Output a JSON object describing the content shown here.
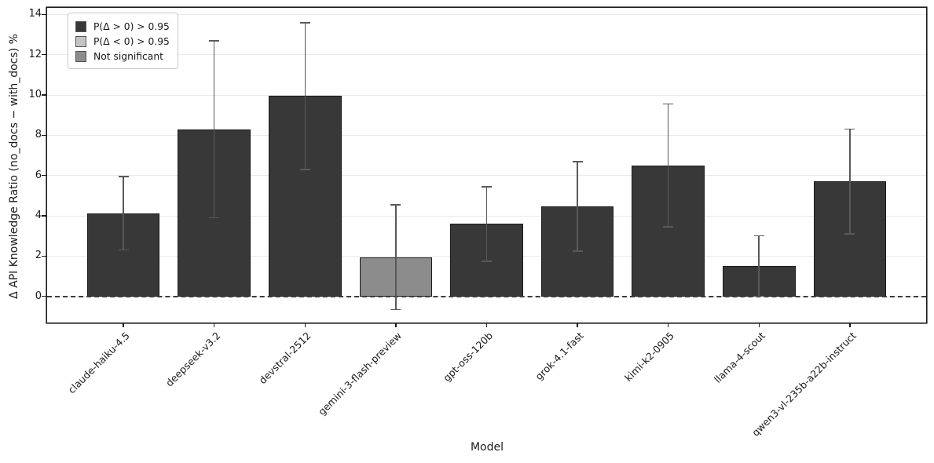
{
  "chart_data": {
    "type": "bar",
    "title": "",
    "xlabel": "Model",
    "ylabel": "Δ API Knowledge Ratio (no_docs − with_docs) %",
    "ylim": [
      -1.3,
      14.33
    ],
    "xlim": [
      -0.84,
      8.84
    ],
    "yticks": [
      0,
      2,
      4,
      6,
      8,
      10,
      12,
      14
    ],
    "bar_width": 0.8,
    "grid": "horizontal",
    "zero_line": "dashed",
    "legend_position": "upper-left",
    "categories": [
      "claude-haiku-4.5",
      "deepseek-v3.2",
      "devstral-2512",
      "gemini-3-flash-preview",
      "gpt-oss-120b",
      "grok-4.1-fast",
      "kimi-k2-0905",
      "llama-4-scout",
      "qwen3-vl-235b-a22b-instruct"
    ],
    "bars": [
      {
        "model": "claude-haiku-4.5",
        "value": 4.1,
        "err_low": 2.3,
        "err_high": 5.95,
        "significance": "positive"
      },
      {
        "model": "deepseek-v3.2",
        "value": 8.3,
        "err_low": 3.9,
        "err_high": 12.7,
        "significance": "positive"
      },
      {
        "model": "devstral-2512",
        "value": 9.95,
        "err_low": 6.3,
        "err_high": 13.6,
        "significance": "positive"
      },
      {
        "model": "gemini-3-flash-preview",
        "value": 1.95,
        "err_low": -0.65,
        "err_high": 4.55,
        "significance": "not_significant"
      },
      {
        "model": "gpt-oss-120b",
        "value": 3.6,
        "err_low": 1.75,
        "err_high": 5.45,
        "significance": "positive"
      },
      {
        "model": "grok-4.1-fast",
        "value": 4.45,
        "err_low": 2.25,
        "err_high": 6.7,
        "significance": "positive"
      },
      {
        "model": "kimi-k2-0905",
        "value": 6.5,
        "err_low": 3.45,
        "err_high": 9.55,
        "significance": "positive"
      },
      {
        "model": "llama-4-scout",
        "value": 1.5,
        "err_low": 0.0,
        "err_high": 3.0,
        "significance": "positive"
      },
      {
        "model": "qwen3-vl-235b-a22b-instruct",
        "value": 5.7,
        "err_low": 3.1,
        "err_high": 8.3,
        "significance": "positive"
      }
    ],
    "legend": [
      {
        "label": "P(Δ > 0) > 0.95",
        "color_key": "positive"
      },
      {
        "label": "P(Δ < 0) > 0.95",
        "color_key": "negative"
      },
      {
        "label": "Not significant",
        "color_key": "not_significant"
      }
    ],
    "colors": {
      "positive": "#383838",
      "negative": "#c4c4c4",
      "not_significant": "#8c8c8c",
      "bar_edge": "#1a1a1a",
      "error_bar": "#595959"
    }
  }
}
